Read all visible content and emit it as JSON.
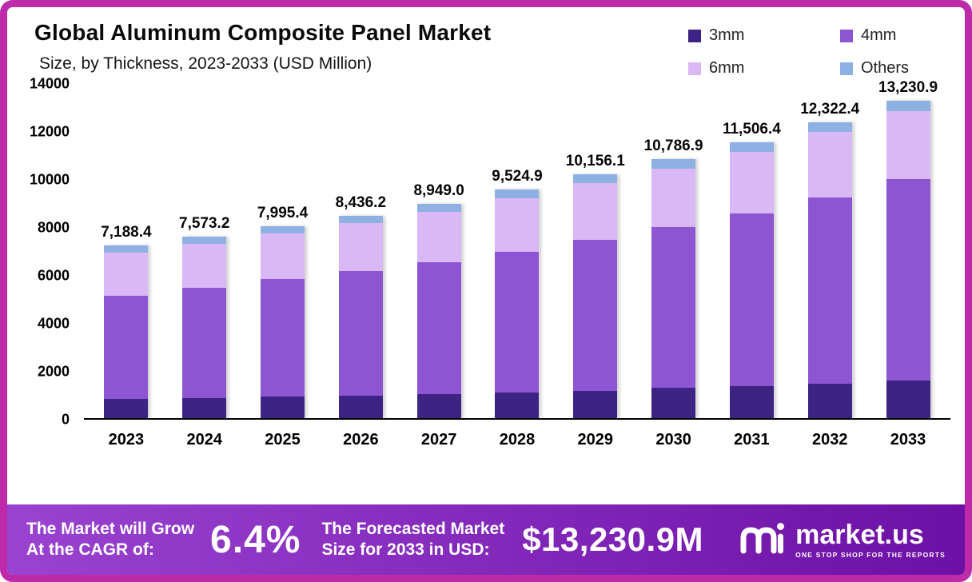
{
  "colors": {
    "frame": "#be2ba8",
    "banner_gradient_start": "#9a43d0",
    "banner_gradient_end": "#6d10a5"
  },
  "header": {
    "title": "Global Aluminum Composite Panel Market",
    "subtitle": "Size, by Thickness, 2023-2033 (USD Million)"
  },
  "chart_data": {
    "type": "bar",
    "stacked": true,
    "title": "Global Aluminum Composite Panel Market",
    "subtitle": "Size, by Thickness, 2023-2033 (USD Million)",
    "categories": [
      "2023",
      "2024",
      "2025",
      "2026",
      "2027",
      "2028",
      "2029",
      "2030",
      "2031",
      "2032",
      "2033"
    ],
    "series": [
      {
        "name": "3mm",
        "color": "#3d2383",
        "values": [
          790,
          840,
          890,
          950,
          1010,
          1080,
          1150,
          1260,
          1350,
          1450,
          1560
        ]
      },
      {
        "name": "4mm",
        "color": "#8e55d2",
        "values": [
          4320,
          4600,
          4900,
          5200,
          5500,
          5850,
          6280,
          6700,
          7180,
          7750,
          8400
        ]
      },
      {
        "name": "6mm",
        "color": "#d9b8f5",
        "values": [
          1790,
          1840,
          1900,
          1970,
          2100,
          2250,
          2370,
          2450,
          2580,
          2720,
          2850
        ]
      },
      {
        "name": "Others",
        "color": "#8eb0e3",
        "values": [
          288.4,
          293.2,
          305.4,
          316.2,
          339.0,
          344.9,
          356.1,
          376.9,
          396.4,
          402.4,
          420.9
        ]
      }
    ],
    "totals": [
      7188.4,
      7573.2,
      7995.4,
      8436.2,
      8949.0,
      9524.9,
      10156.1,
      10786.9,
      11506.4,
      12322.4,
      13230.9
    ],
    "total_labels": [
      "7,188.4",
      "7,573.2",
      "7,995.4",
      "8,436.2",
      "8,949.0",
      "9,524.9",
      "10,156.1",
      "10,786.9",
      "11,506.4",
      "12,322.4",
      "13,230.9"
    ],
    "ylim": [
      0,
      14000
    ],
    "ytick_labels": [
      "0",
      "2000",
      "4000",
      "6000",
      "8000",
      "10000",
      "12000",
      "14000"
    ],
    "grid": false,
    "legend_position": "top-right"
  },
  "footer": {
    "cagr_label_line1": "The Market will Grow",
    "cagr_label_line2": "At the CAGR of:",
    "cagr_value": "6.4%",
    "forecast_label_line1": "The Forecasted Market",
    "forecast_label_line2": "Size for 2033 in USD:",
    "forecast_value": "$13,230.9M",
    "brand_name": "market.us",
    "brand_tagline": "ONE STOP SHOP FOR THE REPORTS"
  }
}
